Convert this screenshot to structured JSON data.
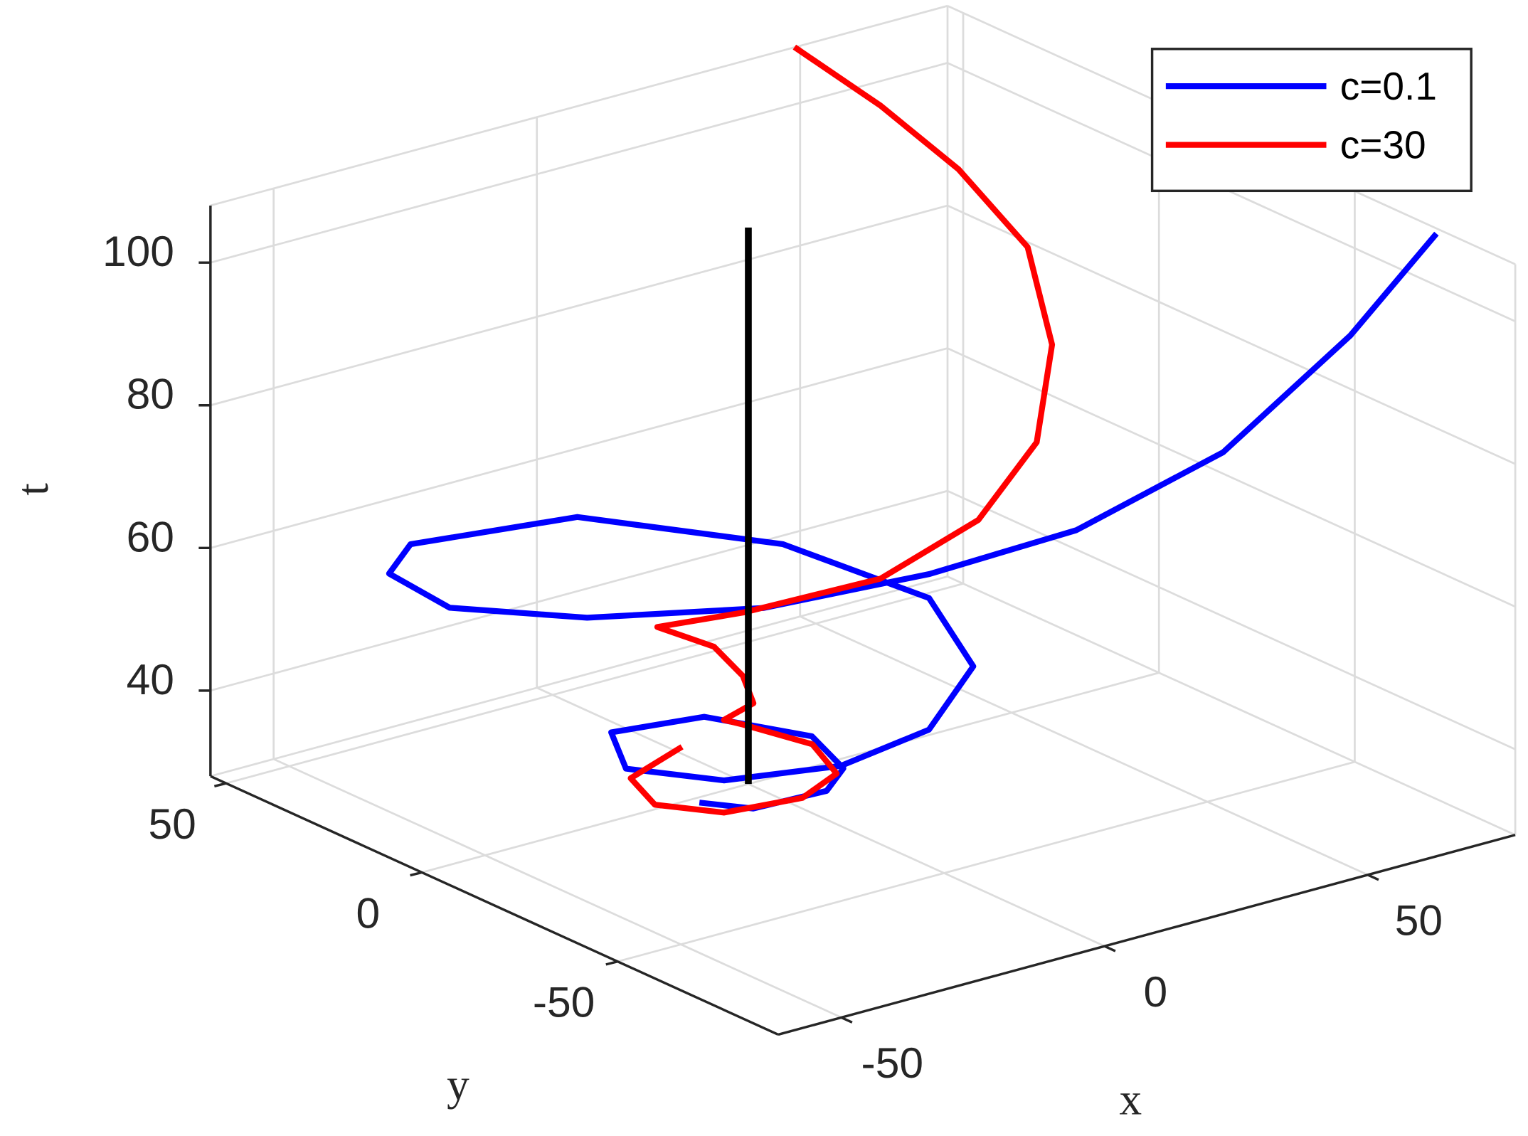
{
  "chart_data": {
    "type": "line3d",
    "xlabel": "x",
    "ylabel": "y",
    "zlabel": "t",
    "xlim": [
      -62,
      78
    ],
    "ylim": [
      -91,
      54
    ],
    "zlim": [
      28,
      108
    ],
    "xticks": [
      -50,
      0,
      50
    ],
    "yticks": [
      -50,
      0,
      50
    ],
    "zticks": [
      40,
      60,
      80,
      100
    ],
    "grid": true,
    "legend": "northeast",
    "series": [
      {
        "name": "c=0.1",
        "color": "#0000ff",
        "x": [
          -10.7,
          -7.7,
          3.8,
          9.8,
          12.6,
          3.0,
          -14.0,
          -23.6,
          -16.9,
          -1.0,
          15.2,
          27.7,
          34.7,
          25.8,
          4.7,
          -26.0,
          -38.1,
          -41.7,
          -29.8,
          -8.2,
          16.8,
          36.4,
          55.6,
          73.3,
          78.5
        ],
        "y": [
          -1.9,
          -11.6,
          -14.9,
          -11.1,
          0.7,
          15.3,
          16.2,
          -0.5,
          -16.5,
          -25.0,
          -25.7,
          -20.2,
          0.5,
          25.9,
          50.0,
          51.3,
          40.5,
          20.2,
          1.1,
          -14.8,
          -23.7,
          -34.8,
          -46.5,
          -55.2,
          -70.2
        ],
        "z": [
          28,
          29,
          30,
          31,
          32,
          33,
          34,
          35,
          36,
          37,
          39,
          44,
          47,
          50,
          52,
          54,
          55,
          56,
          57,
          58,
          60,
          65,
          75,
          90,
          107
        ]
      },
      {
        "name": "c=30",
        "color": "#ff0000",
        "x": [
          -1.9,
          -18.1,
          -24.0,
          -19.7,
          -8.4,
          0.2,
          3.1,
          -1.9,
          -4.8,
          1.2,
          1.5,
          0.1,
          -7.1,
          3.2,
          22.8,
          40.5,
          54.7,
          69.0,
          76.7,
          73.9,
          66.3,
          49.0
        ],
        "y": [
          14.4,
          5.7,
          -8.4,
          -20.3,
          -25.1,
          -22.3,
          -12.2,
          -1.2,
          -0.2,
          0.3,
          3.4,
          8.9,
          13.7,
          5.6,
          -3.1,
          -4.3,
          -0.1,
          15.2,
          31.8,
          45.7,
          55.4,
          54.1
        ],
        "z": [
          30,
          31,
          32,
          33,
          34,
          35,
          36,
          37,
          38,
          39,
          42,
          45,
          48,
          50,
          53,
          58,
          65,
          72,
          80,
          88,
          96,
          108
        ]
      },
      {
        "color": "#000000",
        "x": [
          0,
          0
        ],
        "y": [
          0,
          0
        ],
        "z": [
          28,
          106
        ]
      }
    ]
  }
}
